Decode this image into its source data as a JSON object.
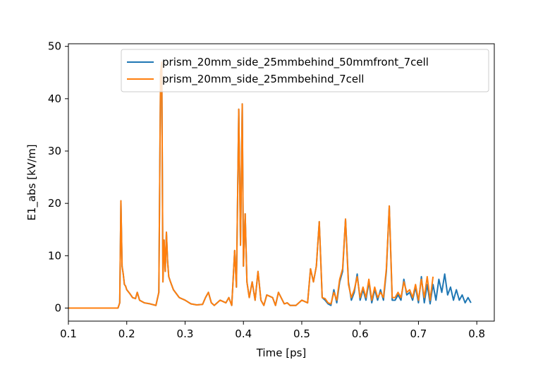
{
  "chart_data": {
    "type": "line",
    "title": "",
    "xlabel": "Time [ps]",
    "ylabel": "E1_abs [kV/m]",
    "xlim": [
      0.1,
      0.83
    ],
    "ylim": [
      -2.5,
      50.5
    ],
    "xticks": [
      0.1,
      0.2,
      0.3,
      0.4,
      0.5,
      0.6,
      0.7,
      0.8
    ],
    "xtick_labels": [
      "0.1",
      "0.2",
      "0.3",
      "0.4",
      "0.5",
      "0.6",
      "0.7",
      "0.8"
    ],
    "yticks": [
      0,
      10,
      20,
      30,
      40,
      50
    ],
    "ytick_labels": [
      "0",
      "10",
      "20",
      "30",
      "40",
      "50"
    ],
    "grid": false,
    "legend_position": "top-right",
    "series": [
      {
        "name": "prism_20mm_side_25mmbehind_50mmfront_7cell",
        "color": "#1f77b4",
        "x": [
          0.1,
          0.185,
          0.188,
          0.19,
          0.192,
          0.194,
          0.196,
          0.198,
          0.2,
          0.205,
          0.21,
          0.215,
          0.218,
          0.222,
          0.23,
          0.24,
          0.25,
          0.255,
          0.258,
          0.26,
          0.262,
          0.264,
          0.266,
          0.268,
          0.27,
          0.272,
          0.275,
          0.28,
          0.29,
          0.3,
          0.31,
          0.32,
          0.33,
          0.335,
          0.34,
          0.345,
          0.35,
          0.36,
          0.37,
          0.375,
          0.38,
          0.385,
          0.388,
          0.392,
          0.395,
          0.398,
          0.4,
          0.403,
          0.406,
          0.41,
          0.415,
          0.42,
          0.425,
          0.43,
          0.435,
          0.44,
          0.45,
          0.455,
          0.46,
          0.47,
          0.475,
          0.48,
          0.49,
          0.5,
          0.51,
          0.515,
          0.52,
          0.525,
          0.53,
          0.535,
          0.54,
          0.545,
          0.55,
          0.555,
          0.56,
          0.565,
          0.57,
          0.575,
          0.58,
          0.585,
          0.59,
          0.595,
          0.6,
          0.605,
          0.61,
          0.615,
          0.62,
          0.625,
          0.63,
          0.635,
          0.64,
          0.645,
          0.65,
          0.655,
          0.66,
          0.665,
          0.67,
          0.675,
          0.68,
          0.685,
          0.69,
          0.695,
          0.7,
          0.705,
          0.71,
          0.715,
          0.72,
          0.725,
          0.73,
          0.735,
          0.74,
          0.745,
          0.75,
          0.755,
          0.76,
          0.765,
          0.77,
          0.775,
          0.78,
          0.785,
          0.79
        ],
        "y": [
          0,
          0,
          1,
          20.5,
          8,
          6.5,
          4.5,
          4.2,
          3.5,
          2.8,
          2.0,
          1.8,
          3.0,
          1.5,
          1.0,
          0.8,
          0.5,
          3.0,
          45,
          47,
          5,
          13,
          7,
          14.5,
          9,
          6,
          5,
          3.5,
          2.0,
          1.5,
          0.8,
          0.6,
          0.7,
          2.0,
          3.0,
          1.0,
          0.5,
          1.5,
          1.0,
          2.0,
          0.5,
          11,
          4,
          38,
          12,
          39,
          8,
          18,
          5,
          2,
          5,
          1.5,
          7,
          1.5,
          0.5,
          2.5,
          2.0,
          0.5,
          3.0,
          0.8,
          1.0,
          0.5,
          0.5,
          1.5,
          1.0,
          7.5,
          5,
          8,
          16.5,
          2.0,
          1.5,
          0.8,
          0.5,
          3.5,
          1.0,
          5,
          7,
          17,
          5,
          1.5,
          3,
          6.5,
          1.5,
          3.5,
          1.5,
          5,
          1.0,
          3.5,
          1.5,
          3.5,
          1.5,
          7,
          19.5,
          1.5,
          1.5,
          2.5,
          1.5,
          5.5,
          2.5,
          3,
          1.5,
          4,
          1.0,
          6,
          1.0,
          4.5,
          0.8,
          4.5,
          1.5,
          5.5,
          3,
          6.5,
          2.5,
          4.0,
          1.5,
          3.5,
          1.5,
          2.5,
          1.0,
          2.0,
          1.0
        ]
      },
      {
        "name": "prism_20mm_side_25mmbehind_7cell",
        "color": "#ff7f0e",
        "x": [
          0.1,
          0.185,
          0.188,
          0.19,
          0.192,
          0.194,
          0.196,
          0.198,
          0.2,
          0.205,
          0.21,
          0.215,
          0.218,
          0.222,
          0.23,
          0.24,
          0.25,
          0.255,
          0.258,
          0.26,
          0.262,
          0.264,
          0.266,
          0.268,
          0.27,
          0.272,
          0.275,
          0.28,
          0.29,
          0.3,
          0.31,
          0.32,
          0.33,
          0.335,
          0.34,
          0.345,
          0.35,
          0.36,
          0.37,
          0.375,
          0.38,
          0.385,
          0.388,
          0.392,
          0.395,
          0.398,
          0.4,
          0.403,
          0.406,
          0.41,
          0.415,
          0.42,
          0.425,
          0.43,
          0.435,
          0.44,
          0.45,
          0.455,
          0.46,
          0.47,
          0.475,
          0.48,
          0.49,
          0.5,
          0.51,
          0.515,
          0.52,
          0.525,
          0.53,
          0.535,
          0.54,
          0.545,
          0.55,
          0.555,
          0.56,
          0.565,
          0.57,
          0.575,
          0.58,
          0.585,
          0.59,
          0.595,
          0.6,
          0.605,
          0.61,
          0.615,
          0.62,
          0.625,
          0.63,
          0.635,
          0.64,
          0.645,
          0.65,
          0.655,
          0.66,
          0.665,
          0.67,
          0.675,
          0.68,
          0.685,
          0.69,
          0.695,
          0.7,
          0.705,
          0.71,
          0.715,
          0.72,
          0.725
        ],
        "y": [
          0,
          0,
          1,
          20.5,
          8,
          6.5,
          4.5,
          4.2,
          3.5,
          2.8,
          2.0,
          1.8,
          3.0,
          1.5,
          1.0,
          0.8,
          0.5,
          3.0,
          45,
          47,
          5,
          13,
          7,
          14.5,
          9,
          6,
          5,
          3.5,
          2.0,
          1.5,
          0.8,
          0.6,
          0.7,
          2.0,
          3.0,
          1.0,
          0.5,
          1.5,
          1.0,
          2.0,
          0.5,
          11,
          4,
          38,
          12,
          39,
          8,
          18,
          5,
          2,
          5,
          1.5,
          7,
          1.5,
          0.5,
          2.5,
          2.0,
          0.5,
          3.0,
          0.8,
          1.0,
          0.5,
          0.5,
          1.5,
          1.0,
          7.5,
          5,
          8,
          16.5,
          2.0,
          1.8,
          1.0,
          0.8,
          3.0,
          1.5,
          5.5,
          7.5,
          17,
          4.5,
          2.0,
          3.5,
          6,
          2.0,
          4.0,
          2.0,
          5.5,
          1.5,
          4.0,
          2.0,
          3.0,
          2.0,
          7.5,
          19.5,
          2.0,
          2.0,
          3.0,
          2.0,
          5.0,
          3.0,
          3.5,
          2.0,
          4.5,
          1.5,
          5.5,
          2.0,
          6.0,
          1.5,
          6.0
        ]
      }
    ]
  }
}
